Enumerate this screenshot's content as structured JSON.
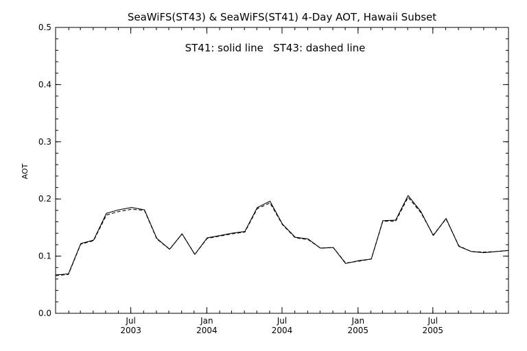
{
  "chart_data": {
    "type": "line",
    "title": "SeaWiFS(ST43) & SeaWiFS(ST41) 4-Day AOT, Hawaii Subset",
    "annotation": "ST41: solid line   ST43: dashed line",
    "ylabel": "AOT",
    "ylim": [
      0.0,
      0.5
    ],
    "yticks": [
      "0.0",
      "0.1",
      "0.2",
      "0.3",
      "0.4",
      "0.5"
    ],
    "xlim": [
      "2002-12-31",
      "2005-12-31"
    ],
    "xticks": [
      {
        "date": "2003-07-01",
        "line1": "Jul",
        "line2": "2003"
      },
      {
        "date": "2004-01-01",
        "line1": "Jan",
        "line2": "2004"
      },
      {
        "date": "2004-07-01",
        "line1": "Jul",
        "line2": "2004"
      },
      {
        "date": "2005-01-01",
        "line1": "Jan",
        "line2": "2005"
      },
      {
        "date": "2005-07-01",
        "line1": "Jul",
        "line2": "2005"
      }
    ],
    "grid": false,
    "series": [
      {
        "name": "ST41",
        "style": "solid",
        "color": "#000000",
        "x": [
          "2002-12-31",
          "2003-01-31",
          "2003-03-02",
          "2003-04-02",
          "2003-05-03",
          "2003-06-02",
          "2003-07-03",
          "2003-08-03",
          "2003-09-02",
          "2003-10-03",
          "2003-11-02",
          "2003-12-03",
          "2004-01-02",
          "2004-02-02",
          "2004-03-02",
          "2004-04-02",
          "2004-05-02",
          "2004-06-02",
          "2004-07-02",
          "2004-08-02",
          "2004-09-02",
          "2004-10-02",
          "2004-11-02",
          "2004-12-02",
          "2005-01-02",
          "2005-02-02",
          "2005-03-02",
          "2005-04-02",
          "2005-05-02",
          "2005-06-02",
          "2005-07-02",
          "2005-08-02",
          "2005-09-02",
          "2005-10-02",
          "2005-11-02",
          "2005-12-02",
          "2005-12-31"
        ],
        "y": [
          0.067,
          0.069,
          0.122,
          0.128,
          0.175,
          0.181,
          0.185,
          0.181,
          0.131,
          0.112,
          0.139,
          0.103,
          0.132,
          0.136,
          0.14,
          0.143,
          0.185,
          0.196,
          0.156,
          0.133,
          0.13,
          0.114,
          0.115,
          0.087,
          0.092,
          0.095,
          0.162,
          0.163,
          0.206,
          0.178,
          0.136,
          0.166,
          0.117,
          0.108,
          0.106,
          0.108,
          0.11
        ]
      },
      {
        "name": "ST43",
        "style": "dashed",
        "color": "#000000",
        "x": [
          "2002-12-31",
          "2003-01-31",
          "2003-03-02",
          "2003-04-02",
          "2003-05-03",
          "2003-06-02",
          "2003-07-03",
          "2003-08-03",
          "2003-09-02",
          "2003-10-03",
          "2003-11-02",
          "2003-12-03",
          "2004-01-02",
          "2004-02-02",
          "2004-03-02",
          "2004-04-02",
          "2004-05-02",
          "2004-06-02",
          "2004-07-02",
          "2004-08-02",
          "2004-09-02",
          "2004-10-02",
          "2004-11-02",
          "2004-12-02",
          "2005-01-02",
          "2005-02-02",
          "2005-03-02",
          "2005-04-02",
          "2005-05-02",
          "2005-06-02",
          "2005-07-02",
          "2005-08-02",
          "2005-09-02",
          "2005-10-02",
          "2005-11-02",
          "2005-12-02",
          "2005-12-31"
        ],
        "y": [
          0.066,
          0.068,
          0.121,
          0.127,
          0.172,
          0.178,
          0.182,
          0.18,
          0.13,
          0.112,
          0.139,
          0.103,
          0.131,
          0.135,
          0.139,
          0.142,
          0.183,
          0.193,
          0.155,
          0.132,
          0.129,
          0.114,
          0.115,
          0.088,
          0.091,
          0.095,
          0.161,
          0.161,
          0.203,
          0.176,
          0.137,
          0.165,
          0.118,
          0.108,
          0.107,
          0.108,
          0.11
        ]
      }
    ]
  }
}
